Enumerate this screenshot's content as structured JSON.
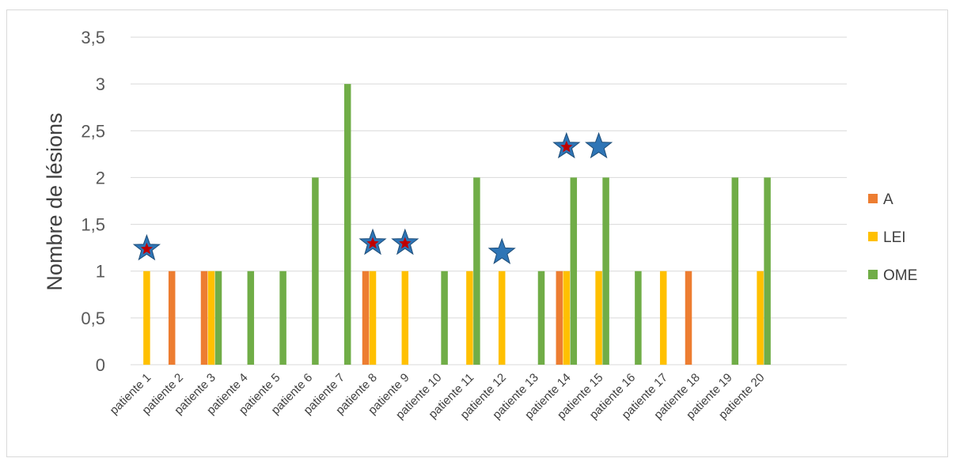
{
  "chart_data": {
    "type": "bar",
    "title": "",
    "xlabel": "",
    "ylabel": "Nombre  de lésions",
    "ylim": [
      0,
      3.5
    ],
    "y_ticks": [
      "0",
      "0,5",
      "1",
      "1,5",
      "2",
      "2,5",
      "3",
      "3,5"
    ],
    "grid": true,
    "legend_position": "right",
    "categories": [
      "patiente 1",
      "patiente 2",
      "patiente 3",
      "patiente 4",
      "patiente 5",
      "patiente 6",
      "patiente 7",
      "patiente 8",
      "patiente 9",
      "patiente 10",
      "patiente 11",
      "patiente 12",
      "patiente 13",
      "patiente 14",
      "patiente 15",
      "patiente 16",
      "patiente 17",
      "patiente 18",
      "patiente 19",
      "patiente 20"
    ],
    "series": [
      {
        "name": "A",
        "color": "#ED7D31",
        "values": [
          0,
          1,
          1,
          0,
          0,
          0,
          0,
          1,
          0,
          0,
          0,
          0,
          0,
          1,
          0,
          0,
          0,
          1,
          0,
          0
        ]
      },
      {
        "name": "LEI",
        "color": "#FFC000",
        "values": [
          1,
          0,
          1,
          0,
          0,
          0,
          0,
          1,
          1,
          0,
          1,
          1,
          0,
          1,
          1,
          0,
          1,
          0,
          0,
          1
        ]
      },
      {
        "name": "OME",
        "color": "#70AD47",
        "values": [
          0,
          0,
          1,
          1,
          1,
          2,
          3,
          0,
          0,
          1,
          2,
          0,
          1,
          2,
          2,
          1,
          0,
          0,
          2,
          2
        ]
      }
    ],
    "annotations": [
      {
        "type": "star",
        "style": "blue-red-center",
        "category": "patiente 1",
        "y": 1.24
      },
      {
        "type": "star",
        "style": "blue-red-center",
        "category": "patiente 8",
        "y": 1.3
      },
      {
        "type": "star",
        "style": "blue-red-center",
        "category": "patiente 9",
        "y": 1.3
      },
      {
        "type": "star",
        "style": "blue",
        "category": "patiente 12",
        "y": 1.2
      },
      {
        "type": "star",
        "style": "blue-red-center",
        "category": "patiente 14",
        "y": 2.33
      },
      {
        "type": "star",
        "style": "blue",
        "category": "patiente 15",
        "y": 2.33
      }
    ],
    "colors": {
      "grid": "#d9d9d9",
      "star": "#2E75B6",
      "star_center": "#C00000"
    }
  }
}
